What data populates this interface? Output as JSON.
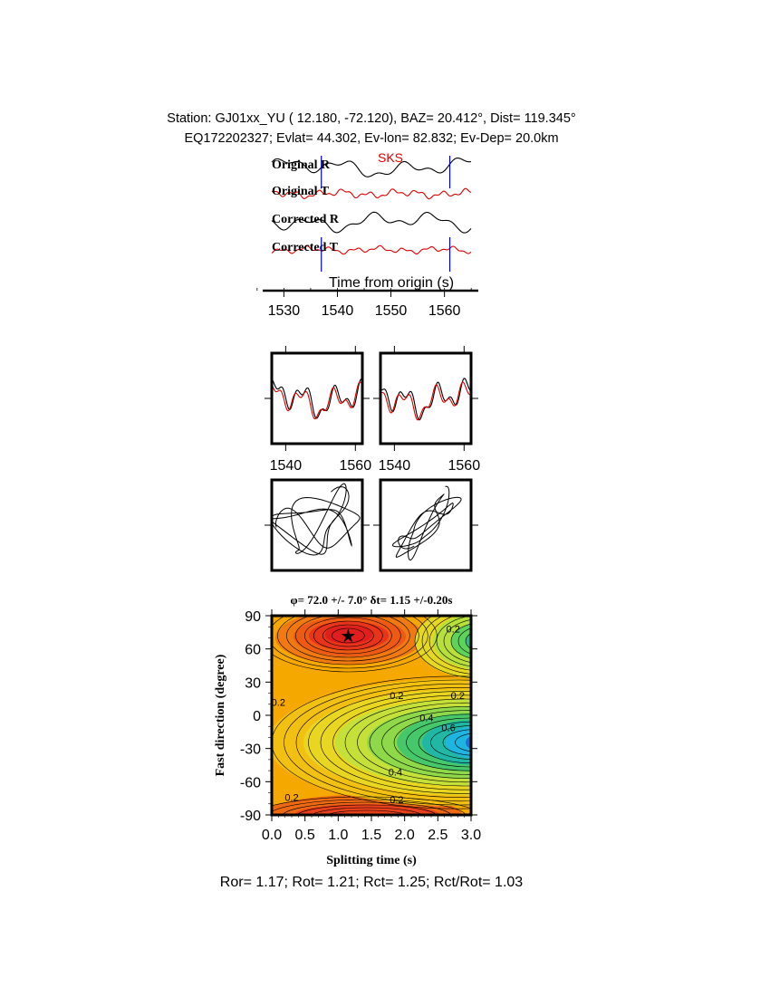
{
  "header": {
    "line1": "Station: GJ01xx_YU (  12.180,  -72.120), BAZ=   20.412°, Dist=  119.345°",
    "line2": "EQ172202327; Evlat=  44.302, Ev-lon=  82.832; Ev-Dep= 20.0km"
  },
  "footer": {
    "ratios": "Ror= 1.17; Rot= 1.21; Rct= 1.25; Rct/Rot= 1.03"
  },
  "colors": {
    "radial": "#000000",
    "transverse": "#e00000",
    "marker": "#0000cc",
    "phase_label": "#e00000"
  },
  "chart_data": [
    {
      "type": "line",
      "panel": "seismograms",
      "traces": [
        {
          "label": "Original R",
          "color": "black"
        },
        {
          "label": "Original T",
          "color": "red"
        },
        {
          "label": "Corrected R",
          "color": "black"
        },
        {
          "label": "Corrected T",
          "color": "red"
        }
      ],
      "phase": "SKS",
      "xlabel": "Time from origin (s)",
      "xticks": [
        1530,
        1540,
        1550,
        1560
      ],
      "xlim": [
        1523,
        1567
      ],
      "window_markers": [
        1537,
        1561
      ]
    },
    {
      "type": "line",
      "panel": "waveform-overlay-original",
      "xticks": [
        1540,
        1560
      ],
      "xlim": [
        1536,
        1562
      ]
    },
    {
      "type": "line",
      "panel": "waveform-overlay-corrected",
      "xticks": [
        1540,
        1560
      ],
      "xlim": [
        1536,
        1562
      ]
    },
    {
      "type": "scatter",
      "panel": "particle-motion-original"
    },
    {
      "type": "scatter",
      "panel": "particle-motion-corrected"
    },
    {
      "type": "heatmap",
      "panel": "splitting-grid",
      "title": "φ= 72.0 +/- 7.0° δt= 1.15 +/-0.20s",
      "xlabel": "Splitting time (s)",
      "ylabel": "Fast direction (degree)",
      "xlim": [
        0,
        3
      ],
      "ylim": [
        -90,
        90
      ],
      "xticks": [
        "0.0",
        "0.5",
        "1.0",
        "1.5",
        "2.0",
        "2.5",
        "3.0"
      ],
      "yticks": [
        "90",
        "60",
        "30",
        "0",
        "-30",
        "-60",
        "-90"
      ],
      "best_fit": {
        "fast_direction": 72.0,
        "fast_direction_error": 7.0,
        "delay_time": 1.15,
        "delay_time_error": 0.2
      },
      "contour_labels": [
        {
          "text": "0.2",
          "x": 1.88,
          "y": 18
        },
        {
          "text": "0.2",
          "x": 2.8,
          "y": 18
        },
        {
          "text": "0.2",
          "x": 0.1,
          "y": 12
        },
        {
          "text": "0.2",
          "x": 2.73,
          "y": 78
        },
        {
          "text": "0.4",
          "x": 2.33,
          "y": -2
        },
        {
          "text": "0.6",
          "x": 2.66,
          "y": -11
        },
        {
          "text": "0.4",
          "x": 1.86,
          "y": -51
        },
        {
          "text": "0.2",
          "x": 0.3,
          "y": -74
        },
        {
          "text": "0.2",
          "x": 1.88,
          "y": -76
        }
      ]
    }
  ]
}
